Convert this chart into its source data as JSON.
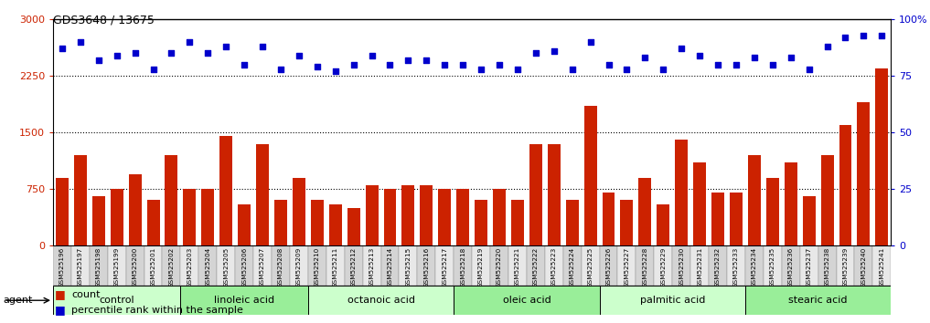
{
  "title": "GDS3648 / 13675",
  "samples": [
    "GSM525196",
    "GSM525197",
    "GSM525198",
    "GSM525199",
    "GSM525200",
    "GSM525201",
    "GSM525202",
    "GSM525203",
    "GSM525204",
    "GSM525205",
    "GSM525206",
    "GSM525207",
    "GSM525208",
    "GSM525209",
    "GSM525210",
    "GSM525211",
    "GSM525212",
    "GSM525213",
    "GSM525214",
    "GSM525215",
    "GSM525216",
    "GSM525217",
    "GSM525218",
    "GSM525219",
    "GSM525220",
    "GSM525221",
    "GSM525222",
    "GSM525223",
    "GSM525224",
    "GSM525225",
    "GSM525226",
    "GSM525227",
    "GSM525228",
    "GSM525229",
    "GSM525230",
    "GSM525231",
    "GSM525232",
    "GSM525233",
    "GSM525234",
    "GSM525235",
    "GSM525236",
    "GSM525237",
    "GSM525238",
    "GSM525239",
    "GSM525240",
    "GSM525241"
  ],
  "counts": [
    900,
    1200,
    650,
    750,
    950,
    600,
    1200,
    750,
    750,
    1450,
    550,
    1350,
    600,
    900,
    600,
    550,
    500,
    800,
    750,
    800,
    800,
    750,
    750,
    600,
    750,
    600,
    1350,
    1350,
    600,
    1850,
    700,
    600,
    900,
    550,
    1400,
    1100,
    700,
    700,
    1200,
    900,
    1100,
    650,
    1200,
    1600,
    1900,
    2350
  ],
  "percentile_ranks": [
    87,
    90,
    82,
    84,
    85,
    78,
    85,
    90,
    85,
    88,
    80,
    88,
    78,
    84,
    79,
    77,
    80,
    84,
    80,
    82,
    82,
    80,
    80,
    78,
    80,
    78,
    85,
    86,
    78,
    90,
    80,
    78,
    83,
    78,
    87,
    84,
    80,
    80,
    83,
    80,
    83,
    78,
    88,
    92,
    93,
    93
  ],
  "groups": [
    {
      "name": "control",
      "start": 0,
      "end": 6
    },
    {
      "name": "linoleic acid",
      "start": 7,
      "end": 13
    },
    {
      "name": "octanoic acid",
      "start": 14,
      "end": 21
    },
    {
      "name": "oleic acid",
      "start": 22,
      "end": 29
    },
    {
      "name": "palmitic acid",
      "start": 30,
      "end": 37
    },
    {
      "name": "stearic acid",
      "start": 38,
      "end": 45
    }
  ],
  "bar_color": "#cc2200",
  "dot_color": "#0000cc",
  "group_colors": [
    "#ccffcc",
    "#99ee99"
  ],
  "left_yaxis_ticks": [
    0,
    750,
    1500,
    2250,
    3000
  ],
  "right_yaxis_ticks": [
    0,
    25,
    50,
    75,
    100
  ],
  "left_ylim": [
    0,
    3000
  ],
  "right_ylim": [
    0,
    100
  ],
  "bg_color": "#ffffff"
}
